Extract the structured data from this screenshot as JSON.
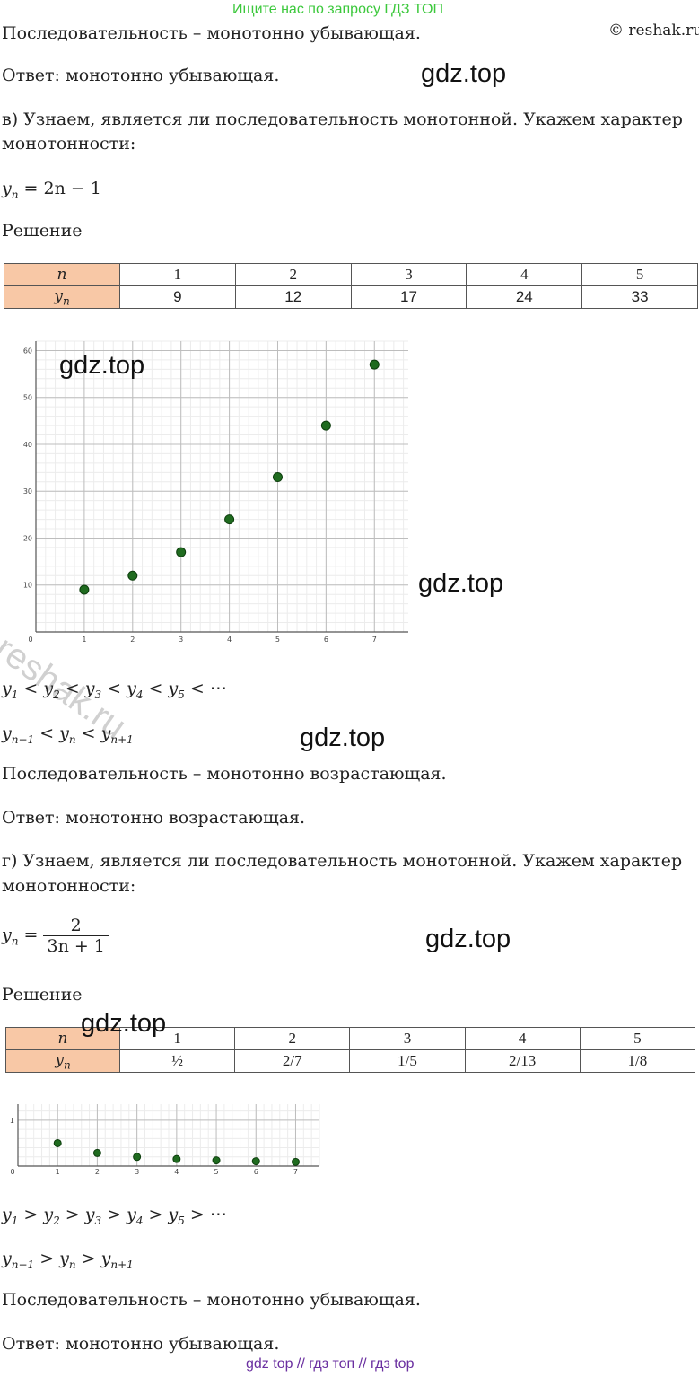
{
  "banner_top": "Ищите нас по запросу ГДЗ ТОП",
  "copyright": "© reshak.ru",
  "watermark": "gdz.top",
  "reshak_watermark": "reshak.ru",
  "section_b": {
    "conclusion_prev": "Последовательность – монотонно убывающая.",
    "answer_prev": "Ответ: монотонно убывающая.",
    "task": "в) Узнаем, является ли последовательность монотонной. Укажем характер",
    "task_cont": "монотонности:",
    "formula": "= 2n − 1",
    "solution": "Решение",
    "table": {
      "n_head": "n",
      "y_head": "y",
      "n": [
        "1",
        "2",
        "3",
        "4",
        "5"
      ],
      "y": [
        "9",
        "12",
        "17",
        "24",
        "33"
      ]
    },
    "ineq1_tail": "< ⋯",
    "conclusion": "Последовательность – монотонно возрастающая.",
    "answer": "Ответ: монотонно возрастающая."
  },
  "section_g": {
    "task": "г) Узнаем, является ли последовательность монотонной. Укажем характер",
    "task_cont": "монотонности:",
    "formula_num": "2",
    "formula_den": "3n + 1",
    "solution": "Решение",
    "table": {
      "n_head": "n",
      "y_head": "y",
      "n": [
        "1",
        "2",
        "3",
        "4",
        "5"
      ],
      "y": [
        "½",
        "2/7",
        "1/5",
        "2/13",
        "1/8"
      ]
    },
    "ineq1_tail": "> ⋯",
    "conclusion": "Последовательность – монотонно убывающая.",
    "answer": "Ответ: монотонно убывающая."
  },
  "banner_bottom": "gdz top  //  гдз топ  //  гдз top",
  "chart_data": [
    {
      "type": "scatter",
      "x": [
        1,
        2,
        3,
        4,
        5,
        6,
        7
      ],
      "y": [
        9,
        12,
        17,
        24,
        33,
        44,
        57
      ],
      "xlim": [
        0,
        7.7
      ],
      "ylim": [
        0,
        62
      ],
      "x_ticks": [
        "0",
        "1",
        "2",
        "3",
        "4",
        "5",
        "6",
        "7"
      ],
      "y_ticks": [
        "10",
        "20",
        "30",
        "40",
        "50",
        "60"
      ],
      "grid": true,
      "color": "#1f6b1f"
    },
    {
      "type": "scatter",
      "x": [
        1,
        2,
        3,
        4,
        5,
        6,
        7
      ],
      "y": [
        0.5,
        0.2857,
        0.2,
        0.1538,
        0.125,
        0.1053,
        0.0909
      ],
      "xlim": [
        0,
        7.6
      ],
      "ylim": [
        0,
        1.35
      ],
      "x_ticks": [
        "0",
        "1",
        "2",
        "3",
        "4",
        "5",
        "6",
        "7"
      ],
      "y_ticks": [
        "1"
      ],
      "grid": true,
      "color": "#1f6b1f"
    }
  ]
}
